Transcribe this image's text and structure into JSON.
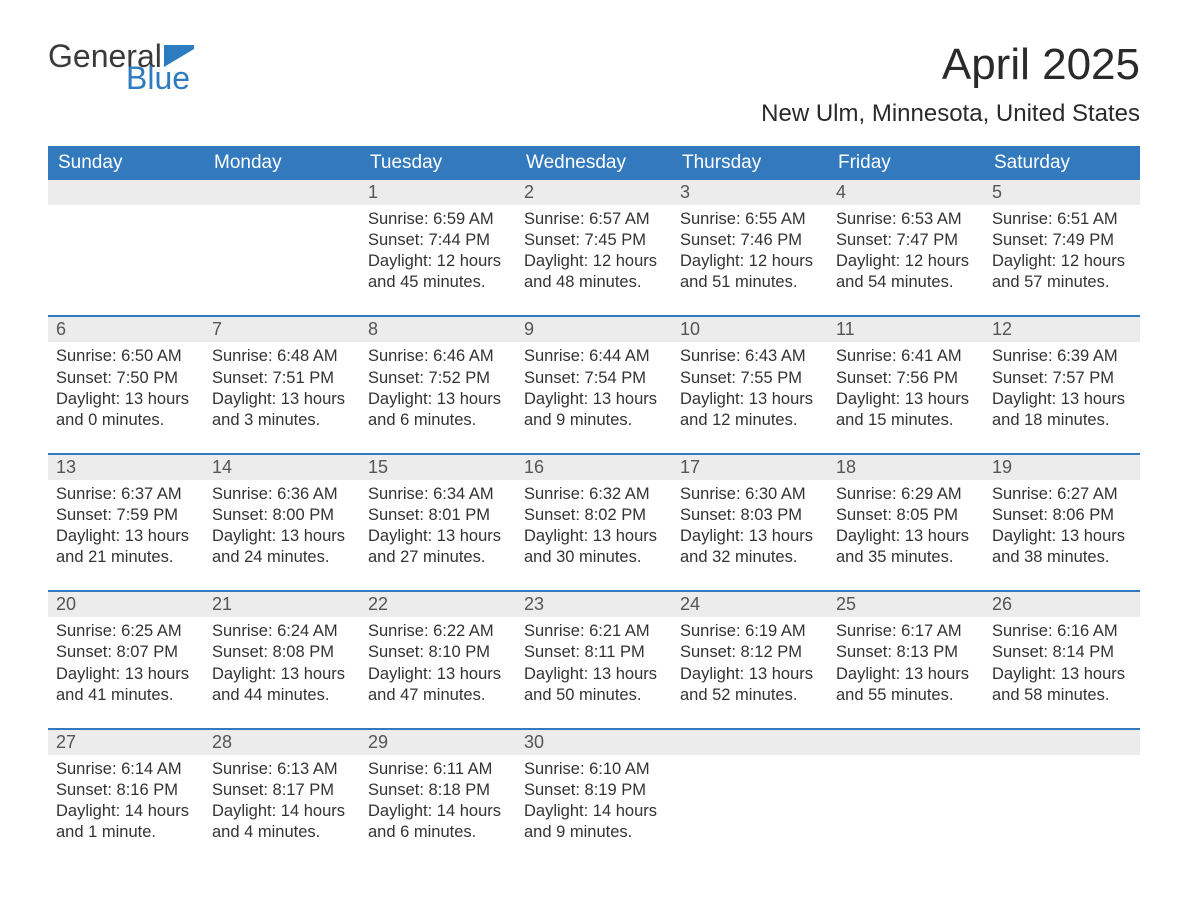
{
  "logo": {
    "text_top": "General",
    "text_bottom": "Blue",
    "flag_color": "#2e7cc0"
  },
  "title": "April 2025",
  "subtitle": "New Ulm, Minnesota, United States",
  "colors": {
    "header_bg": "#3279bd",
    "header_text": "#ffffff",
    "daynum_bg": "#ececec",
    "row_border": "#3279bd",
    "body_text": "#333333",
    "logo_gray": "#3a3a3a",
    "logo_blue": "#2e7cc0"
  },
  "day_headers": [
    "Sunday",
    "Monday",
    "Tuesday",
    "Wednesday",
    "Thursday",
    "Friday",
    "Saturday"
  ],
  "weeks": [
    [
      {
        "num": "",
        "sunrise": "",
        "sunset": "",
        "daylight": ""
      },
      {
        "num": "",
        "sunrise": "",
        "sunset": "",
        "daylight": ""
      },
      {
        "num": "1",
        "sunrise": "Sunrise: 6:59 AM",
        "sunset": "Sunset: 7:44 PM",
        "daylight": "Daylight: 12 hours and 45 minutes."
      },
      {
        "num": "2",
        "sunrise": "Sunrise: 6:57 AM",
        "sunset": "Sunset: 7:45 PM",
        "daylight": "Daylight: 12 hours and 48 minutes."
      },
      {
        "num": "3",
        "sunrise": "Sunrise: 6:55 AM",
        "sunset": "Sunset: 7:46 PM",
        "daylight": "Daylight: 12 hours and 51 minutes."
      },
      {
        "num": "4",
        "sunrise": "Sunrise: 6:53 AM",
        "sunset": "Sunset: 7:47 PM",
        "daylight": "Daylight: 12 hours and 54 minutes."
      },
      {
        "num": "5",
        "sunrise": "Sunrise: 6:51 AM",
        "sunset": "Sunset: 7:49 PM",
        "daylight": "Daylight: 12 hours and 57 minutes."
      }
    ],
    [
      {
        "num": "6",
        "sunrise": "Sunrise: 6:50 AM",
        "sunset": "Sunset: 7:50 PM",
        "daylight": "Daylight: 13 hours and 0 minutes."
      },
      {
        "num": "7",
        "sunrise": "Sunrise: 6:48 AM",
        "sunset": "Sunset: 7:51 PM",
        "daylight": "Daylight: 13 hours and 3 minutes."
      },
      {
        "num": "8",
        "sunrise": "Sunrise: 6:46 AM",
        "sunset": "Sunset: 7:52 PM",
        "daylight": "Daylight: 13 hours and 6 minutes."
      },
      {
        "num": "9",
        "sunrise": "Sunrise: 6:44 AM",
        "sunset": "Sunset: 7:54 PM",
        "daylight": "Daylight: 13 hours and 9 minutes."
      },
      {
        "num": "10",
        "sunrise": "Sunrise: 6:43 AM",
        "sunset": "Sunset: 7:55 PM",
        "daylight": "Daylight: 13 hours and 12 minutes."
      },
      {
        "num": "11",
        "sunrise": "Sunrise: 6:41 AM",
        "sunset": "Sunset: 7:56 PM",
        "daylight": "Daylight: 13 hours and 15 minutes."
      },
      {
        "num": "12",
        "sunrise": "Sunrise: 6:39 AM",
        "sunset": "Sunset: 7:57 PM",
        "daylight": "Daylight: 13 hours and 18 minutes."
      }
    ],
    [
      {
        "num": "13",
        "sunrise": "Sunrise: 6:37 AM",
        "sunset": "Sunset: 7:59 PM",
        "daylight": "Daylight: 13 hours and 21 minutes."
      },
      {
        "num": "14",
        "sunrise": "Sunrise: 6:36 AM",
        "sunset": "Sunset: 8:00 PM",
        "daylight": "Daylight: 13 hours and 24 minutes."
      },
      {
        "num": "15",
        "sunrise": "Sunrise: 6:34 AM",
        "sunset": "Sunset: 8:01 PM",
        "daylight": "Daylight: 13 hours and 27 minutes."
      },
      {
        "num": "16",
        "sunrise": "Sunrise: 6:32 AM",
        "sunset": "Sunset: 8:02 PM",
        "daylight": "Daylight: 13 hours and 30 minutes."
      },
      {
        "num": "17",
        "sunrise": "Sunrise: 6:30 AM",
        "sunset": "Sunset: 8:03 PM",
        "daylight": "Daylight: 13 hours and 32 minutes."
      },
      {
        "num": "18",
        "sunrise": "Sunrise: 6:29 AM",
        "sunset": "Sunset: 8:05 PM",
        "daylight": "Daylight: 13 hours and 35 minutes."
      },
      {
        "num": "19",
        "sunrise": "Sunrise: 6:27 AM",
        "sunset": "Sunset: 8:06 PM",
        "daylight": "Daylight: 13 hours and 38 minutes."
      }
    ],
    [
      {
        "num": "20",
        "sunrise": "Sunrise: 6:25 AM",
        "sunset": "Sunset: 8:07 PM",
        "daylight": "Daylight: 13 hours and 41 minutes."
      },
      {
        "num": "21",
        "sunrise": "Sunrise: 6:24 AM",
        "sunset": "Sunset: 8:08 PM",
        "daylight": "Daylight: 13 hours and 44 minutes."
      },
      {
        "num": "22",
        "sunrise": "Sunrise: 6:22 AM",
        "sunset": "Sunset: 8:10 PM",
        "daylight": "Daylight: 13 hours and 47 minutes."
      },
      {
        "num": "23",
        "sunrise": "Sunrise: 6:21 AM",
        "sunset": "Sunset: 8:11 PM",
        "daylight": "Daylight: 13 hours and 50 minutes."
      },
      {
        "num": "24",
        "sunrise": "Sunrise: 6:19 AM",
        "sunset": "Sunset: 8:12 PM",
        "daylight": "Daylight: 13 hours and 52 minutes."
      },
      {
        "num": "25",
        "sunrise": "Sunrise: 6:17 AM",
        "sunset": "Sunset: 8:13 PM",
        "daylight": "Daylight: 13 hours and 55 minutes."
      },
      {
        "num": "26",
        "sunrise": "Sunrise: 6:16 AM",
        "sunset": "Sunset: 8:14 PM",
        "daylight": "Daylight: 13 hours and 58 minutes."
      }
    ],
    [
      {
        "num": "27",
        "sunrise": "Sunrise: 6:14 AM",
        "sunset": "Sunset: 8:16 PM",
        "daylight": "Daylight: 14 hours and 1 minute."
      },
      {
        "num": "28",
        "sunrise": "Sunrise: 6:13 AM",
        "sunset": "Sunset: 8:17 PM",
        "daylight": "Daylight: 14 hours and 4 minutes."
      },
      {
        "num": "29",
        "sunrise": "Sunrise: 6:11 AM",
        "sunset": "Sunset: 8:18 PM",
        "daylight": "Daylight: 14 hours and 6 minutes."
      },
      {
        "num": "30",
        "sunrise": "Sunrise: 6:10 AM",
        "sunset": "Sunset: 8:19 PM",
        "daylight": "Daylight: 14 hours and 9 minutes."
      },
      {
        "num": "",
        "sunrise": "",
        "sunset": "",
        "daylight": ""
      },
      {
        "num": "",
        "sunrise": "",
        "sunset": "",
        "daylight": ""
      },
      {
        "num": "",
        "sunrise": "",
        "sunset": "",
        "daylight": ""
      }
    ]
  ]
}
